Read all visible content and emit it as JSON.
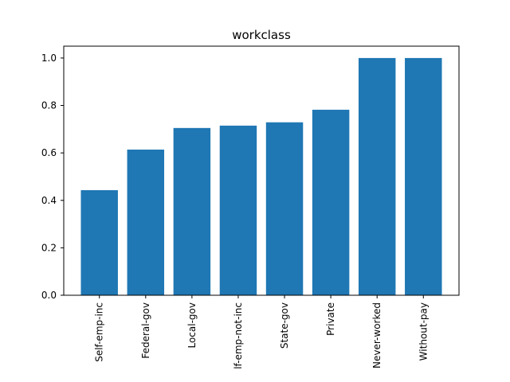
{
  "colors": {
    "bar": "#1f77b4",
    "axis": "#000000",
    "background": "#ffffff"
  },
  "chart_data": {
    "type": "bar",
    "title": "workclass",
    "xlabel": "",
    "ylabel": "",
    "categories": [
      "Self-emp-inc",
      "Federal-gov",
      "Local-gov",
      "lf-emp-not-inc",
      "State-gov",
      "Private",
      "Never-worked",
      "Without-pay"
    ],
    "values": [
      0.443,
      0.614,
      0.705,
      0.715,
      0.729,
      0.782,
      1.0,
      1.0
    ],
    "ylim": [
      0,
      1.05
    ],
    "yticks": [
      0.0,
      0.2,
      0.4,
      0.6,
      0.8,
      1.0
    ],
    "ytick_labels": [
      "0.0",
      "0.2",
      "0.4",
      "0.6",
      "0.8",
      "1.0"
    ],
    "grid": false,
    "legend": "none"
  }
}
